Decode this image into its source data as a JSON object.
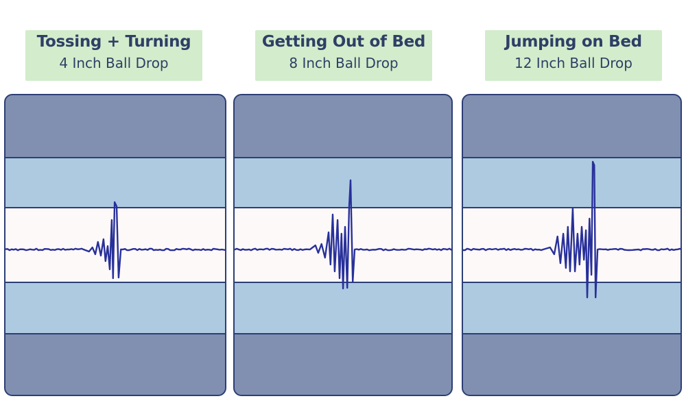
{
  "panels": [
    {
      "title": "Tossing + Turning",
      "subtitle": "4 Inch Ball Drop"
    },
    {
      "title": "Getting Out of Bed",
      "subtitle": "8 Inch Ball Drop"
    },
    {
      "title": "Jumping on Bed",
      "subtitle": "12 Inch Ball Drop"
    }
  ],
  "colors": {
    "label_bg": "#d3eccb",
    "text": "#2e3f66",
    "outer_band": "#8190b1",
    "mid_band": "#adcae1",
    "center_band": "#fdf9f8",
    "signal": "#28309a",
    "border": "#2c3e74"
  },
  "chart_data": [
    {
      "type": "line",
      "name": "Tossing + Turning",
      "x_unit": "percent of panel width",
      "y_unit": "relative amplitude",
      "t": [
        35.1,
        37.6,
        39.1,
        40.4,
        41.6,
        42.9,
        44.1,
        45.0,
        46.0,
        46.9,
        47.8,
        48.4,
        49.1,
        50.0,
        50.9,
        51.9
      ],
      "a": [
        0,
        -3,
        3,
        -7,
        11,
        -9,
        15,
        -17,
        5,
        -29,
        43,
        -42,
        69,
        63,
        -41,
        0
      ]
    },
    {
      "type": "line",
      "name": "Getting Out of Bed",
      "x_unit": "percent of panel width",
      "y_unit": "relative amplitude",
      "t": [
        34.3,
        36.8,
        38.1,
        39.6,
        41.2,
        42.8,
        43.7,
        44.7,
        45.6,
        46.9,
        47.8,
        48.7,
        49.4,
        50.3,
        51.3,
        52.2,
        52.8,
        53.8,
        54.7
      ],
      "a": [
        0,
        6,
        -5,
        8,
        -12,
        25,
        -22,
        51,
        -32,
        43,
        -42,
        23,
        -57,
        33,
        -56,
        63,
        101,
        -47,
        0
      ]
    },
    {
      "type": "line",
      "name": "Jumping on Bed",
      "x_unit": "percent of panel width",
      "y_unit": "relative amplitude",
      "t": [
        36.4,
        39.5,
        41.4,
        42.9,
        44.2,
        45.5,
        46.7,
        47.6,
        48.6,
        49.8,
        50.8,
        52.0,
        52.9,
        53.9,
        54.9,
        55.8,
        56.4,
        57.4,
        58.3,
        58.9,
        59.6,
        60.2,
        61.1
      ],
      "a": [
        0,
        3,
        -7,
        19,
        -20,
        23,
        -27,
        33,
        -32,
        60,
        -32,
        23,
        -22,
        33,
        -15,
        28,
        -70,
        45,
        -37,
        128,
        123,
        -70,
        0
      ]
    }
  ]
}
